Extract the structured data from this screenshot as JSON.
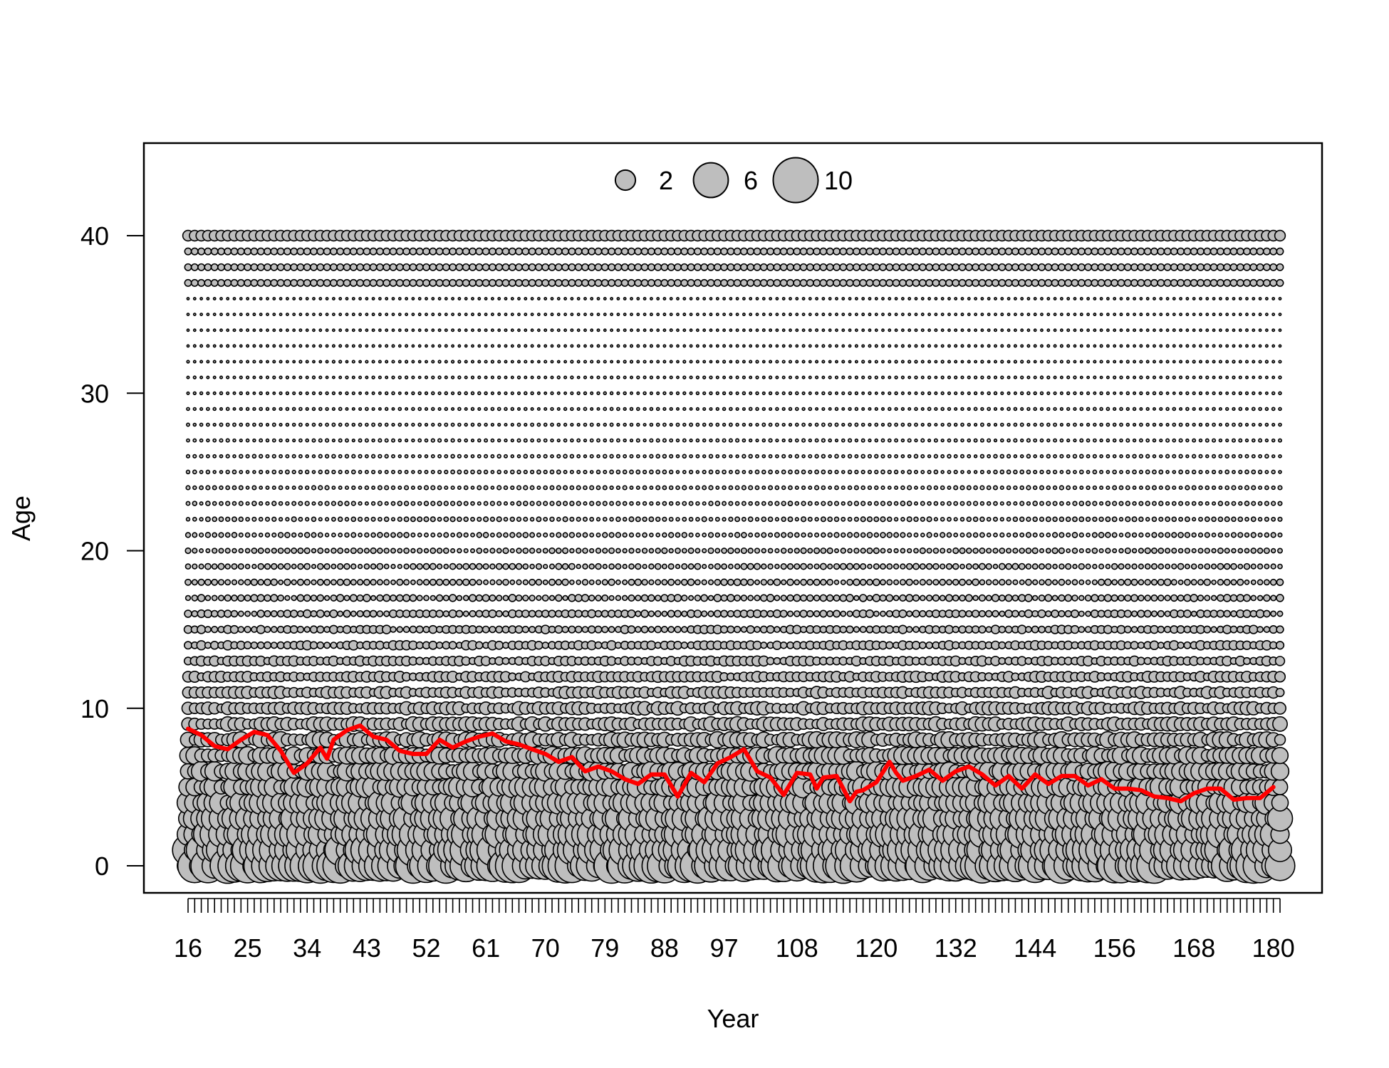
{
  "chart_data": {
    "type": "scatter",
    "subtype": "bubble",
    "title": "",
    "xlabel": "Year",
    "ylabel": "Age",
    "x_range": [
      16,
      181
    ],
    "ylim": [
      -2,
      46
    ],
    "x_tick_labels": [
      16,
      25,
      34,
      43,
      52,
      61,
      70,
      79,
      88,
      97,
      108,
      120,
      132,
      144,
      156,
      168,
      180
    ],
    "y_tick_labels": [
      0,
      10,
      20,
      30,
      40
    ],
    "ages": [
      0,
      40
    ],
    "legend": {
      "placement": "top-center",
      "sizes": [
        2,
        6,
        10
      ]
    },
    "bubble_fill": "#bebebe",
    "bubble_stroke": "#000000",
    "line_color": "#ff0000",
    "mean_age_series": {
      "x": [
        16,
        18,
        20,
        22,
        24,
        26,
        28,
        30,
        32,
        34,
        36,
        37,
        38,
        40,
        42,
        44,
        46,
        48,
        50,
        52,
        54,
        56,
        58,
        60,
        62,
        64,
        66,
        68,
        70,
        72,
        74,
        76,
        78,
        80,
        82,
        84,
        86,
        88,
        90,
        92,
        94,
        96,
        98,
        100,
        102,
        104,
        106,
        108,
        110,
        111,
        112,
        114,
        116,
        117,
        118,
        120,
        122,
        123,
        124,
        126,
        128,
        130,
        132,
        134,
        136,
        138,
        140,
        142,
        144,
        146,
        148,
        150,
        152,
        154,
        156,
        158,
        160,
        162,
        164,
        166,
        168,
        170,
        172,
        174,
        176,
        178,
        180
      ],
      "values": [
        8.7,
        8.3,
        7.6,
        7.4,
        8.0,
        8.5,
        8.3,
        7.3,
        5.9,
        6.5,
        7.5,
        6.8,
        8.0,
        8.6,
        8.9,
        8.2,
        8.0,
        7.3,
        7.1,
        7.1,
        8.0,
        7.5,
        7.9,
        8.2,
        8.4,
        7.9,
        7.7,
        7.4,
        7.1,
        6.6,
        6.9,
        6.0,
        6.3,
        6.0,
        5.5,
        5.2,
        5.8,
        5.8,
        4.4,
        5.9,
        5.3,
        6.5,
        6.9,
        7.4,
        6.0,
        5.6,
        4.5,
        5.9,
        5.8,
        4.9,
        5.6,
        5.7,
        4.1,
        4.7,
        4.8,
        5.3,
        6.6,
        5.9,
        5.4,
        5.7,
        6.1,
        5.4,
        6.0,
        6.3,
        5.8,
        5.1,
        5.7,
        4.9,
        5.8,
        5.2,
        5.7,
        5.7,
        5.1,
        5.5,
        4.9,
        4.9,
        4.8,
        4.4,
        4.3,
        4.1,
        4.6,
        4.9,
        4.9,
        4.2,
        4.3,
        4.3,
        5.0
      ]
    }
  }
}
